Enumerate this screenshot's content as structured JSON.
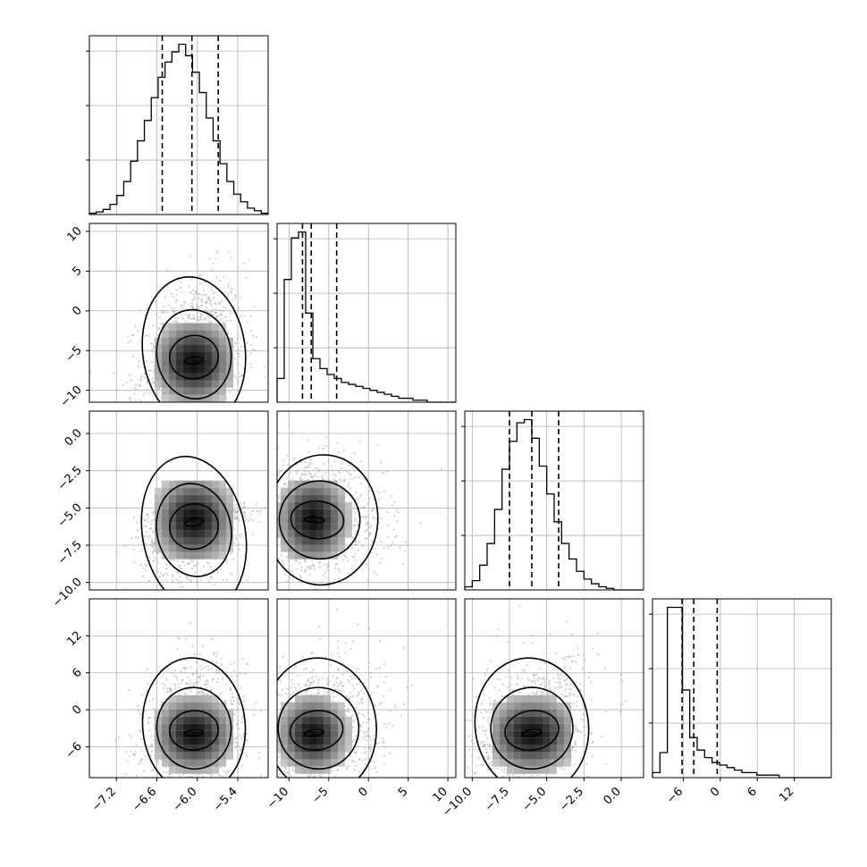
{
  "chart_data": {
    "type": "corner",
    "parameters": 4,
    "grid": true,
    "dashed_quantile_lines": true,
    "ranges": [
      [
        -7.6,
        -4.95
      ],
      [
        -11.5,
        11
      ],
      [
        -10.5,
        1.5
      ],
      [
        -11,
        18
      ]
    ],
    "ticks": [
      {
        "values": [
          -7.2,
          -6.6,
          -6.0,
          -5.4
        ],
        "labels": [
          "−7.2",
          "−6.6",
          "−6.0",
          "−5.4"
        ]
      },
      {
        "values": [
          -10,
          -5,
          0,
          5,
          10
        ],
        "labels": [
          "−10",
          "−5",
          "0",
          "5",
          "10"
        ]
      },
      {
        "values": [
          -10.0,
          -7.5,
          -5.0,
          -2.5,
          0.0
        ],
        "labels": [
          "−10.0",
          "−7.5",
          "−5.0",
          "−2.5",
          "0.0"
        ]
      },
      {
        "values": [
          -6,
          0,
          6,
          12
        ],
        "labels": [
          "−6",
          "0",
          "6",
          "12"
        ]
      }
    ],
    "quantiles": [
      [
        -6.52,
        -6.08,
        -5.69
      ],
      [
        -8.3,
        -7.2,
        -4.0
      ],
      [
        -7.5,
        -6.0,
        -4.2
      ],
      [
        -6.2,
        -4.3,
        -0.5
      ]
    ],
    "histograms": [
      {
        "edges_start": -7.6,
        "edges_end": -4.95,
        "counts": [
          1,
          2,
          4,
          8,
          15,
          26,
          42,
          58,
          74,
          92,
          108,
          120,
          128,
          134,
          125,
          112,
          96,
          76,
          58,
          40,
          26,
          16,
          10,
          5,
          3,
          1
        ]
      },
      {
        "edges_start": -11.5,
        "edges_end": 11,
        "counts": [
          12,
          62,
          83,
          86,
          45,
          22,
          17,
          14,
          12,
          10,
          9,
          8,
          7,
          6,
          5,
          4,
          3,
          2,
          2,
          1,
          1,
          0,
          0,
          0,
          0
        ]
      },
      {
        "edges_start": -10.5,
        "edges_end": 1.5,
        "counts": [
          2,
          6,
          16,
          30,
          52,
          78,
          96,
          108,
          110,
          98,
          80,
          62,
          44,
          30,
          20,
          12,
          7,
          4,
          2,
          1,
          0,
          0,
          0,
          0
        ]
      },
      {
        "edges_start": -11,
        "edges_end": 18,
        "counts": [
          2,
          10,
          68,
          68,
          35,
          16,
          11,
          8,
          6,
          5,
          4,
          3,
          2,
          2,
          1,
          1,
          1,
          0,
          0,
          0,
          0,
          0,
          0,
          0
        ]
      }
    ],
    "joint": [
      {
        "row": 1,
        "col": 0,
        "mean": [
          -6.05,
          -6.5
        ],
        "sd": [
          0.38,
          3.4
        ],
        "rho": 0.2,
        "skew_y": 1.6
      },
      {
        "row": 2,
        "col": 0,
        "mean": [
          -6.05,
          -5.8
        ],
        "sd": [
          0.38,
          1.9
        ],
        "rho": 0.3,
        "skew_y": 0.3
      },
      {
        "row": 2,
        "col": 1,
        "mean": [
          -7.0,
          -5.8
        ],
        "sd": [
          2.8,
          1.9
        ],
        "rho": -0.1,
        "skew_x": 1.6
      },
      {
        "row": 3,
        "col": 0,
        "mean": [
          -6.05,
          -4.0
        ],
        "sd": [
          0.38,
          4.0
        ],
        "rho": 0.15,
        "skew_y": 1.5
      },
      {
        "row": 3,
        "col": 1,
        "mean": [
          -7.0,
          -4.0
        ],
        "sd": [
          2.8,
          4.0
        ],
        "rho": 0.2,
        "skew_x": 1.5,
        "skew_y": 1.5
      },
      {
        "row": 3,
        "col": 2,
        "mean": [
          -6.0,
          -4.0
        ],
        "sd": [
          1.9,
          4.0
        ],
        "rho": 0.3,
        "skew_y": 1.5
      }
    ],
    "colors": {
      "line": "#000000",
      "scatter": "#9a9a9a",
      "grid": "#b0b0b0"
    }
  }
}
